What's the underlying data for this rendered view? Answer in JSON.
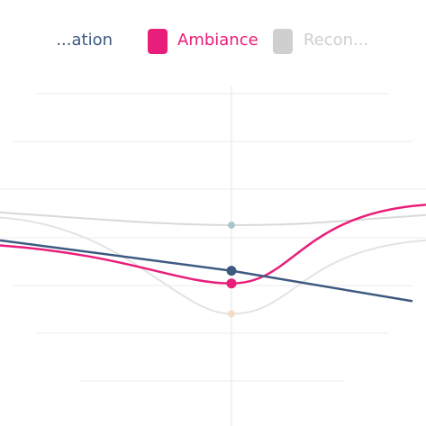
{
  "chart_data": {
    "type": "line",
    "title": "",
    "xlabel": "",
    "ylabel": "",
    "legend": {
      "placement": "top",
      "entries": [
        {
          "label": "...ation",
          "color": "#3d5a80"
        },
        {
          "label": "Ambiance",
          "color": "#e91e7a"
        },
        {
          "label": "Recon...",
          "color": "#cfcfcf"
        }
      ]
    },
    "grid": true,
    "series": [
      {
        "name": "...ation",
        "color": "#3d5a80",
        "values": [
          3.2,
          2.6,
          2.0
        ]
      },
      {
        "name": "Ambiance",
        "color": "#e91e7a",
        "values": [
          3.1,
          2.35,
          3.9
        ]
      },
      {
        "name": "Recon...",
        "color": "#d9d9d9",
        "values": [
          3.75,
          3.5,
          3.7
        ]
      },
      {
        "name": "",
        "color": "#e3e3e3",
        "values": [
          3.65,
          1.75,
          3.2
        ]
      }
    ]
  }
}
